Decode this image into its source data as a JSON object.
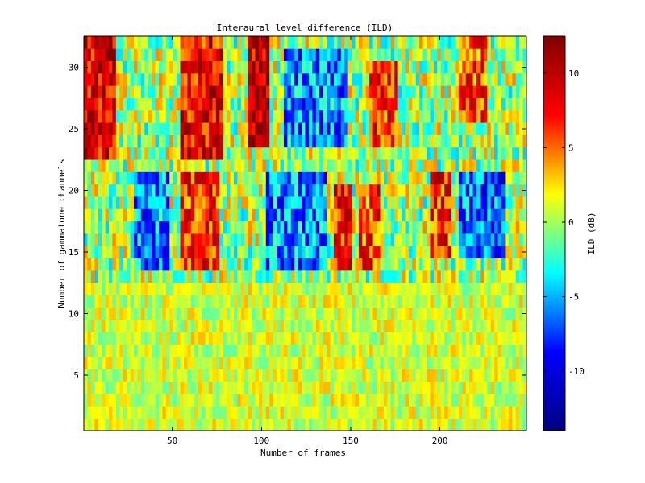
{
  "chart_data": {
    "type": "heatmap",
    "title": "Interaural level difference (ILD)",
    "xlabel": "Number of frames",
    "ylabel": "Number of gammatone channels",
    "colorbar_label": "ILD (dB)",
    "colormap": "jet",
    "colormap_colors": [
      "#000080",
      "#0000ff",
      "#00ffff",
      "#ffff00",
      "#ff0000",
      "#800000"
    ],
    "x_range": [
      0.5,
      248.5
    ],
    "y_range": [
      0.5,
      32.5
    ],
    "color_range": [
      -14,
      12.5
    ],
    "n_frames": 248,
    "n_channels": 32,
    "x_ticks": [
      50,
      100,
      150,
      200
    ],
    "x_tick_labels": [
      "50",
      "100",
      "150",
      "200"
    ],
    "y_ticks": [
      5,
      10,
      15,
      20,
      25,
      30
    ],
    "y_tick_labels": [
      "5",
      "10",
      "15",
      "20",
      "25",
      "30"
    ],
    "colorbar_ticks": [
      -10,
      -5,
      0,
      5,
      10
    ],
    "colorbar_tick_labels": [
      "-10",
      "-5",
      "0",
      "5",
      "10"
    ],
    "value_profile": {
      "description_of_pattern": "estimated ILD bands by channel group and frame range",
      "bands": [
        {
          "channels": [
            23,
            32
          ],
          "frames": [
            1,
            18
          ],
          "value": 9
        },
        {
          "channels": [
            23,
            32
          ],
          "frames": [
            55,
            78
          ],
          "value": 8
        },
        {
          "channels": [
            24,
            32
          ],
          "frames": [
            93,
            103
          ],
          "value": 10
        },
        {
          "channels": [
            24,
            31
          ],
          "frames": [
            112,
            148
          ],
          "value": -6
        },
        {
          "channels": [
            24,
            30
          ],
          "frames": [
            160,
            176
          ],
          "value": 7
        },
        {
          "channels": [
            26,
            32
          ],
          "frames": [
            210,
            225
          ],
          "value": 6
        },
        {
          "channels": [
            14,
            21
          ],
          "frames": [
            55,
            75
          ],
          "value": 7
        },
        {
          "channels": [
            14,
            21
          ],
          "frames": [
            28,
            48
          ],
          "value": -6
        },
        {
          "channels": [
            14,
            21
          ],
          "frames": [
            103,
            135
          ],
          "value": -6
        },
        {
          "channels": [
            14,
            20
          ],
          "frames": [
            140,
            150
          ],
          "value": 7
        },
        {
          "channels": [
            14,
            20
          ],
          "frames": [
            155,
            165
          ],
          "value": 6
        },
        {
          "channels": [
            15,
            21
          ],
          "frames": [
            195,
            205
          ],
          "value": 7
        },
        {
          "channels": [
            15,
            21
          ],
          "frames": [
            210,
            235
          ],
          "value": -7
        },
        {
          "channels": [
            1,
            12
          ],
          "frames": [
            1,
            248
          ],
          "value": 1
        }
      ]
    }
  }
}
